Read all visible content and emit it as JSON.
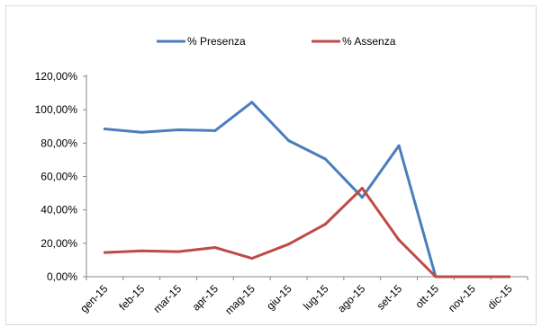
{
  "chart_data": {
    "type": "line",
    "categories": [
      "gen-15",
      "feb-15",
      "mar-15",
      "apr-15",
      "mag-15",
      "giu-15",
      "lug-15",
      "ago-15",
      "set-15",
      "ott-15",
      "nov-15",
      "dic-15"
    ],
    "series": [
      {
        "name": "% Presenza",
        "color": "#4a7ebb",
        "values": [
          88.5,
          86.5,
          88.0,
          87.5,
          104.5,
          81.5,
          70.5,
          47.5,
          78.5,
          0.0,
          0.0,
          0.0
        ]
      },
      {
        "name": "% Assenza",
        "color": "#be4b48",
        "values": [
          14.5,
          15.5,
          15.0,
          17.5,
          11.0,
          19.5,
          31.5,
          53.0,
          22.0,
          0.0,
          0.0,
          0.0
        ]
      }
    ],
    "yticks": [
      "0,00%",
      "20,00%",
      "40,00%",
      "60,00%",
      "80,00%",
      "100,00%",
      "120,00%"
    ],
    "ylim": [
      0,
      120
    ],
    "legend_position": "top",
    "grid": false
  }
}
